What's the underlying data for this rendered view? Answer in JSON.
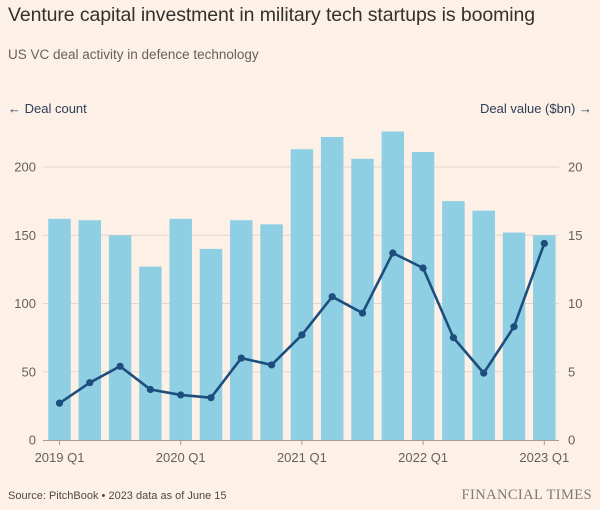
{
  "header": {
    "title": "Venture capital investment in military tech startups is booming",
    "subtitle": "US VC deal activity in defence technology"
  },
  "footer": {
    "source": "Source: PitchBook • 2023 data as of June 15",
    "brand": "FINANCIAL TIMES"
  },
  "colors": {
    "background": "#fdf1e7",
    "bars": "#8ecfe3",
    "line": "#1d4e7e",
    "grid": "#e3d5c9",
    "axis": "#a49c95"
  },
  "chart_data": {
    "type": "bar+line",
    "title": "Venture capital investment in military tech startups is booming",
    "subtitle": "US VC deal activity in defence technology",
    "left_axis_title": "← Deal count",
    "right_axis_title": "Deal value ($bn) →",
    "categories": [
      "2019 Q1",
      "2019 Q2",
      "2019 Q3",
      "2019 Q4",
      "2020 Q1",
      "2020 Q2",
      "2020 Q3",
      "2020 Q4",
      "2021 Q1",
      "2021 Q2",
      "2021 Q3",
      "2021 Q4",
      "2022 Q1",
      "2022 Q2",
      "2022 Q3",
      "2022 Q4",
      "2023 Q1"
    ],
    "x_tick_labels": [
      {
        "index": 0,
        "label": "2019 Q1"
      },
      {
        "index": 4,
        "label": "2020 Q1"
      },
      {
        "index": 8,
        "label": "2021 Q1"
      },
      {
        "index": 12,
        "label": "2022 Q1"
      },
      {
        "index": 16,
        "label": "2023 Q1"
      }
    ],
    "series": [
      {
        "name": "Deal count",
        "type": "bar",
        "axis": "left",
        "values": [
          162,
          161,
          150,
          127,
          162,
          140,
          161,
          158,
          213,
          222,
          206,
          226,
          211,
          175,
          168,
          152,
          150
        ]
      },
      {
        "name": "Deal value ($bn)",
        "type": "line",
        "axis": "right",
        "values": [
          2.7,
          4.2,
          5.4,
          3.7,
          3.3,
          3.1,
          6.0,
          5.5,
          7.7,
          10.5,
          9.3,
          13.7,
          12.6,
          7.5,
          4.9,
          8.3,
          14.4
        ]
      }
    ],
    "left_axis": {
      "range": [
        0,
        200
      ],
      "ticks": [
        0,
        50,
        100,
        150,
        200
      ]
    },
    "right_axis": {
      "range": [
        0,
        20
      ],
      "ticks": [
        0,
        5,
        10,
        15,
        20
      ]
    },
    "grid": true,
    "legend": "axis-titles-top"
  }
}
